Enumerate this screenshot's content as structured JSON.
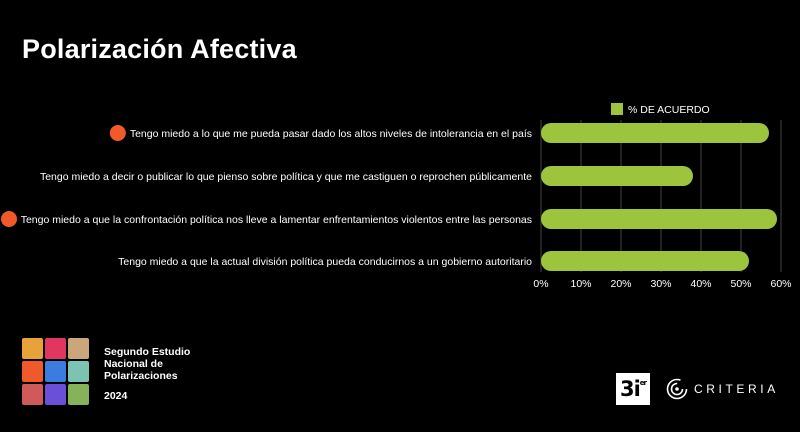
{
  "page": {
    "title": "Polarización Afectiva"
  },
  "chart_data": {
    "type": "bar",
    "orientation": "horizontal",
    "categories": [
      "Tengo miedo a lo que me pueda pasar dado los altos niveles de intolerancia en el país",
      "Tengo miedo a decir o publicar lo que pienso sobre política y que me castiguen o reprochen públicamente",
      "Tengo miedo a que la confrontación política nos lleve a lamentar enfrentamientos violentos entre las personas",
      "Tengo miedo a que la actual división política pueda conducirnos a un gobierno autoritario"
    ],
    "highlighted": [
      true,
      false,
      true,
      false
    ],
    "series": [
      {
        "name": "% DE ACUERDO",
        "values": [
          57,
          38,
          59,
          52
        ]
      }
    ],
    "xlim": [
      0,
      60
    ],
    "ticks": [
      "0%",
      "10%",
      "20%",
      "30%",
      "40%",
      "50%",
      "60%"
    ],
    "grid": true,
    "legend_position": "top",
    "colors": {
      "bar": "#9dc43d",
      "highlight_dot": "#f2592a",
      "grid": "#444444"
    }
  },
  "footer": {
    "study_lines": [
      "Segundo Estudio",
      "Nacional de",
      "Polarizaciones"
    ],
    "year": "2024",
    "logo_colors": [
      "#e8a23a",
      "#e0365f",
      "#c9a77a",
      "#f05a2a",
      "#3c7be0",
      "#7cc3b3",
      "#d05a5a",
      "#6a4fd8",
      "#86b25a"
    ],
    "logo_3i": "3i",
    "logo_3i_sup": "er",
    "criteria": "CRITERIA"
  }
}
